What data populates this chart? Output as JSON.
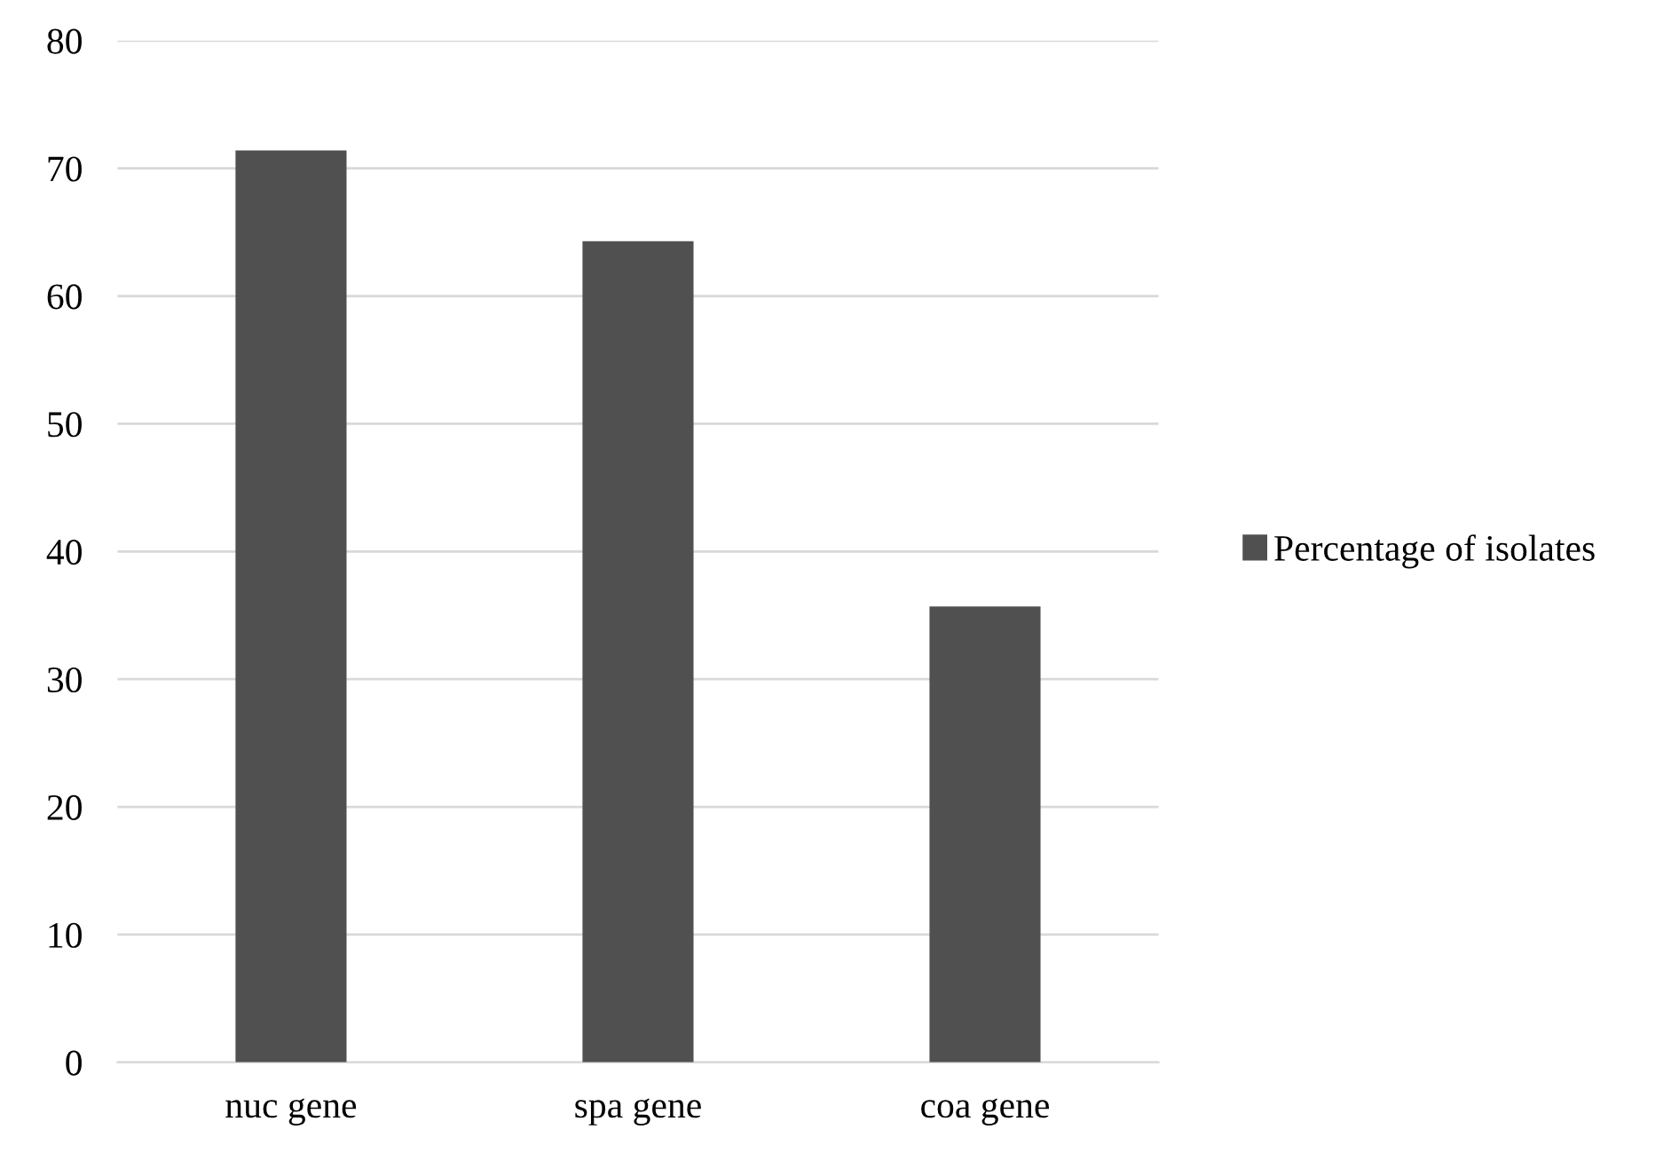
{
  "chart_data": {
    "type": "bar",
    "categories": [
      "nuc gene",
      "spa gene",
      "coa gene"
    ],
    "series": [
      {
        "name": "Percentage of isolates",
        "color": "#505050",
        "values": [
          71.4,
          64.3,
          35.7
        ]
      }
    ],
    "ylim": [
      0,
      80
    ],
    "yticks": [
      0,
      10,
      20,
      30,
      40,
      50,
      60,
      70,
      80
    ],
    "grid": "y",
    "legend": "right"
  }
}
